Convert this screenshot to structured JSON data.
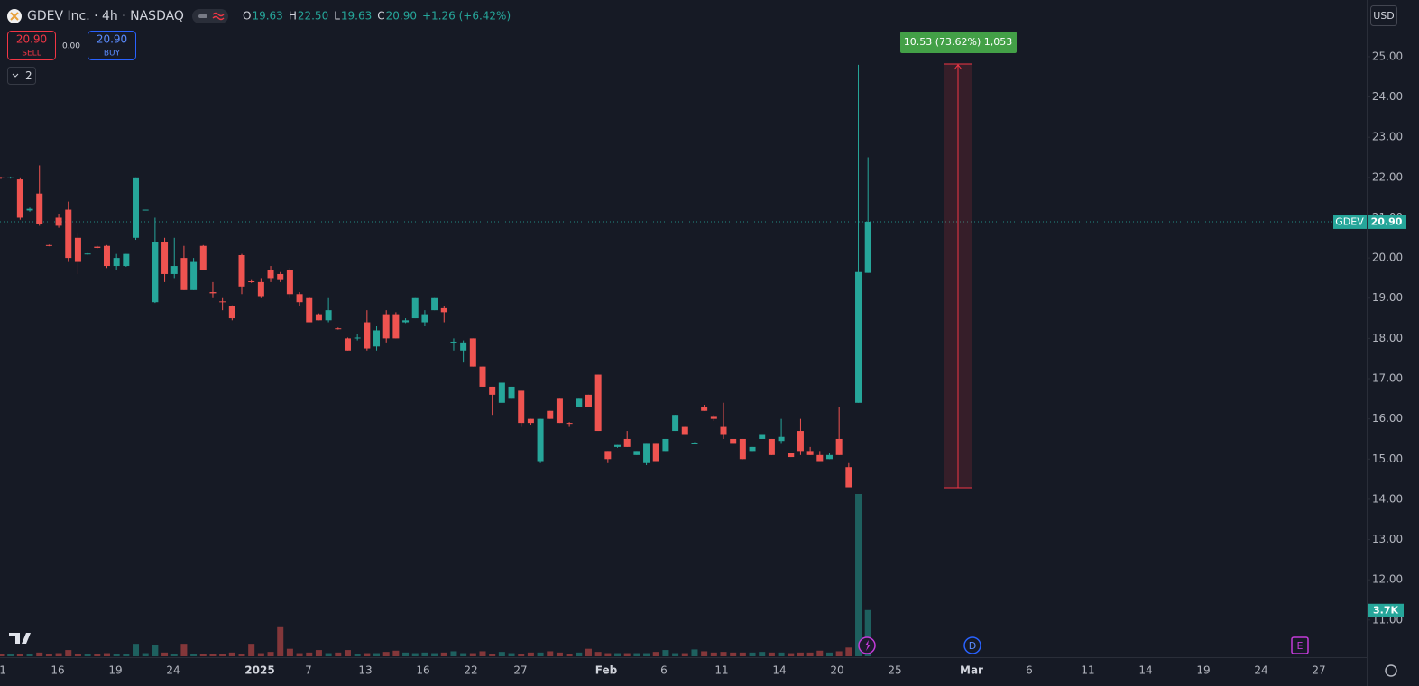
{
  "header": {
    "title": "GDEV Inc. · 4h · NASDAQ",
    "ohlc": [
      {
        "key": "O",
        "value": "19.63"
      },
      {
        "key": "H",
        "value": "22.50"
      },
      {
        "key": "L",
        "value": "19.63"
      },
      {
        "key": "C",
        "value": "20.90"
      }
    ],
    "change": "+1.26 (+6.42%)",
    "sell": {
      "price": "20.90",
      "label": "SELL"
    },
    "spread": "0.00",
    "buy": {
      "price": "20.90",
      "label": "BUY"
    },
    "indicators": "2",
    "currency": "USD"
  },
  "chart_data": {
    "type": "candlestick",
    "symbol": "GDEV",
    "up_color": "#26a69a",
    "down_color": "#ef5350",
    "candles": [
      {
        "o": 22.0,
        "h": 22.02,
        "l": 21.96,
        "c": 21.98
      },
      {
        "o": 21.98,
        "h": 22.02,
        "l": 21.97,
        "c": 22.0
      },
      {
        "o": 21.95,
        "h": 22.0,
        "l": 20.95,
        "c": 21.0
      },
      {
        "o": 21.18,
        "h": 21.25,
        "l": 21.15,
        "c": 21.22
      },
      {
        "o": 21.6,
        "h": 22.3,
        "l": 20.8,
        "c": 20.85
      },
      {
        "o": 20.32,
        "h": 20.33,
        "l": 20.29,
        "c": 20.3
      },
      {
        "o": 21.0,
        "h": 21.1,
        "l": 20.75,
        "c": 20.8
      },
      {
        "o": 21.2,
        "h": 21.4,
        "l": 19.9,
        "c": 20.0
      },
      {
        "o": 20.5,
        "h": 20.6,
        "l": 19.6,
        "c": 19.9
      },
      {
        "o": 20.1,
        "h": 20.12,
        "l": 20.08,
        "c": 20.11
      },
      {
        "o": 20.28,
        "h": 20.3,
        "l": 20.24,
        "c": 20.25
      },
      {
        "o": 20.3,
        "h": 20.32,
        "l": 19.75,
        "c": 19.8
      },
      {
        "o": 19.8,
        "h": 20.1,
        "l": 19.7,
        "c": 20.0
      },
      {
        "o": 19.8,
        "h": 20.1,
        "l": 19.78,
        "c": 20.1
      },
      {
        "o": 20.5,
        "h": 22.0,
        "l": 20.45,
        "c": 22.0
      },
      {
        "o": 21.19,
        "h": 21.2,
        "l": 21.18,
        "c": 21.2
      },
      {
        "o": 18.9,
        "h": 21.0,
        "l": 18.88,
        "c": 20.4
      },
      {
        "o": 20.4,
        "h": 20.5,
        "l": 19.4,
        "c": 19.6
      },
      {
        "o": 19.6,
        "h": 20.5,
        "l": 19.5,
        "c": 19.8
      },
      {
        "o": 20.0,
        "h": 20.3,
        "l": 19.2,
        "c": 19.2
      },
      {
        "o": 19.2,
        "h": 20.0,
        "l": 19.2,
        "c": 19.9
      },
      {
        "o": 20.3,
        "h": 20.32,
        "l": 19.7,
        "c": 19.7
      },
      {
        "o": 19.15,
        "h": 19.4,
        "l": 19.0,
        "c": 19.12
      },
      {
        "o": 18.92,
        "h": 19.0,
        "l": 18.7,
        "c": 18.9
      },
      {
        "o": 18.8,
        "h": 18.82,
        "l": 18.45,
        "c": 18.5
      },
      {
        "o": 20.07,
        "h": 20.1,
        "l": 19.1,
        "c": 19.29
      },
      {
        "o": 19.42,
        "h": 19.45,
        "l": 19.38,
        "c": 19.4
      },
      {
        "o": 19.4,
        "h": 19.5,
        "l": 19.0,
        "c": 19.05
      },
      {
        "o": 19.7,
        "h": 19.8,
        "l": 19.4,
        "c": 19.5
      },
      {
        "o": 19.6,
        "h": 19.65,
        "l": 19.4,
        "c": 19.45
      },
      {
        "o": 19.7,
        "h": 19.75,
        "l": 19.0,
        "c": 19.1
      },
      {
        "o": 19.1,
        "h": 19.15,
        "l": 18.8,
        "c": 18.9
      },
      {
        "o": 19.0,
        "h": 19.02,
        "l": 18.4,
        "c": 18.4
      },
      {
        "o": 18.6,
        "h": 18.62,
        "l": 18.45,
        "c": 18.45
      },
      {
        "o": 18.45,
        "h": 19.0,
        "l": 18.4,
        "c": 18.7
      },
      {
        "o": 18.25,
        "h": 18.27,
        "l": 18.22,
        "c": 18.23
      },
      {
        "o": 18.0,
        "h": 18.02,
        "l": 17.7,
        "c": 17.7
      },
      {
        "o": 18.0,
        "h": 18.1,
        "l": 17.95,
        "c": 18.02
      },
      {
        "o": 18.4,
        "h": 18.7,
        "l": 17.7,
        "c": 17.75
      },
      {
        "o": 17.8,
        "h": 18.3,
        "l": 17.7,
        "c": 18.2
      },
      {
        "o": 18.6,
        "h": 18.7,
        "l": 17.9,
        "c": 18.0
      },
      {
        "o": 18.6,
        "h": 18.65,
        "l": 18.0,
        "c": 18.0
      },
      {
        "o": 18.4,
        "h": 18.5,
        "l": 18.38,
        "c": 18.45
      },
      {
        "o": 18.5,
        "h": 19.0,
        "l": 18.5,
        "c": 19.0
      },
      {
        "o": 18.4,
        "h": 18.7,
        "l": 18.3,
        "c": 18.6
      },
      {
        "o": 18.7,
        "h": 19.0,
        "l": 18.7,
        "c": 19.0
      },
      {
        "o": 18.75,
        "h": 18.8,
        "l": 18.4,
        "c": 18.65
      },
      {
        "o": 17.9,
        "h": 18.0,
        "l": 17.7,
        "c": 17.92
      },
      {
        "o": 17.7,
        "h": 17.95,
        "l": 17.4,
        "c": 17.9
      },
      {
        "o": 18.0,
        "h": 18.0,
        "l": 17.3,
        "c": 17.3
      },
      {
        "o": 17.3,
        "h": 17.3,
        "l": 16.8,
        "c": 16.8
      },
      {
        "o": 16.8,
        "h": 16.8,
        "l": 16.1,
        "c": 16.6
      },
      {
        "o": 16.4,
        "h": 16.9,
        "l": 16.4,
        "c": 16.9
      },
      {
        "o": 16.5,
        "h": 16.8,
        "l": 16.5,
        "c": 16.8
      },
      {
        "o": 16.7,
        "h": 16.7,
        "l": 15.8,
        "c": 15.9
      },
      {
        "o": 16.0,
        "h": 16.0,
        "l": 15.85,
        "c": 15.9
      },
      {
        "o": 14.95,
        "h": 16.0,
        "l": 14.9,
        "c": 16.0
      },
      {
        "o": 16.2,
        "h": 16.2,
        "l": 16.0,
        "c": 16.0
      },
      {
        "o": 16.5,
        "h": 16.5,
        "l": 15.9,
        "c": 15.9
      },
      {
        "o": 15.9,
        "h": 15.92,
        "l": 15.8,
        "c": 15.88
      },
      {
        "o": 16.3,
        "h": 16.5,
        "l": 16.3,
        "c": 16.5
      },
      {
        "o": 16.6,
        "h": 16.6,
        "l": 16.3,
        "c": 16.3
      },
      {
        "o": 17.1,
        "h": 17.1,
        "l": 15.7,
        "c": 15.7
      },
      {
        "o": 15.2,
        "h": 15.2,
        "l": 14.9,
        "c": 15.0
      },
      {
        "o": 15.3,
        "h": 15.35,
        "l": 15.28,
        "c": 15.35
      },
      {
        "o": 15.5,
        "h": 15.7,
        "l": 15.3,
        "c": 15.3
      },
      {
        "o": 15.1,
        "h": 15.2,
        "l": 15.1,
        "c": 15.2
      },
      {
        "o": 14.9,
        "h": 15.4,
        "l": 14.85,
        "c": 15.4
      },
      {
        "o": 15.4,
        "h": 15.4,
        "l": 14.95,
        "c": 14.95
      },
      {
        "o": 15.2,
        "h": 15.5,
        "l": 15.2,
        "c": 15.5
      },
      {
        "o": 15.7,
        "h": 16.1,
        "l": 15.7,
        "c": 16.1
      },
      {
        "o": 15.8,
        "h": 15.8,
        "l": 15.6,
        "c": 15.6
      },
      {
        "o": 15.4,
        "h": 15.42,
        "l": 15.38,
        "c": 15.41
      },
      {
        "o": 16.3,
        "h": 16.35,
        "l": 16.2,
        "c": 16.2
      },
      {
        "o": 16.05,
        "h": 16.1,
        "l": 15.95,
        "c": 16.0
      },
      {
        "o": 15.8,
        "h": 16.4,
        "l": 15.5,
        "c": 15.6
      },
      {
        "o": 15.5,
        "h": 15.5,
        "l": 15.4,
        "c": 15.4
      },
      {
        "o": 15.5,
        "h": 15.5,
        "l": 15.0,
        "c": 15.0
      },
      {
        "o": 15.2,
        "h": 15.3,
        "l": 15.2,
        "c": 15.3
      },
      {
        "o": 15.5,
        "h": 15.6,
        "l": 15.5,
        "c": 15.6
      },
      {
        "o": 15.5,
        "h": 15.5,
        "l": 15.1,
        "c": 15.1
      },
      {
        "o": 15.45,
        "h": 16.0,
        "l": 15.4,
        "c": 15.55
      },
      {
        "o": 15.15,
        "h": 15.15,
        "l": 15.05,
        "c": 15.05
      },
      {
        "o": 15.7,
        "h": 16.0,
        "l": 15.1,
        "c": 15.2
      },
      {
        "o": 15.2,
        "h": 15.3,
        "l": 15.1,
        "c": 15.1
      },
      {
        "o": 15.1,
        "h": 15.2,
        "l": 14.95,
        "c": 14.95
      },
      {
        "o": 15.0,
        "h": 15.15,
        "l": 15.0,
        "c": 15.1
      },
      {
        "o": 15.5,
        "h": 16.3,
        "l": 15.1,
        "c": 15.1
      },
      {
        "o": 14.8,
        "h": 14.9,
        "l": 14.3,
        "c": 14.3
      },
      {
        "o": 16.4,
        "h": 24.8,
        "l": 16.4,
        "c": 19.65
      },
      {
        "o": 19.63,
        "h": 22.5,
        "l": 19.63,
        "c": 20.9
      }
    ],
    "volumes": [
      150,
      150,
      200,
      150,
      300,
      150,
      250,
      500,
      200,
      150,
      150,
      250,
      200,
      150,
      1000,
      250,
      900,
      300,
      200,
      1000,
      200,
      200,
      150,
      200,
      300,
      200,
      1000,
      250,
      350,
      2400,
      600,
      250,
      300,
      500,
      250,
      300,
      500,
      200,
      250,
      250,
      350,
      450,
      300,
      250,
      300,
      250,
      300,
      400,
      250,
      250,
      400,
      200,
      350,
      250,
      200,
      300,
      300,
      400,
      300,
      200,
      300,
      600,
      350,
      250,
      250,
      250,
      250,
      250,
      350,
      500,
      250,
      250,
      550,
      400,
      300,
      350,
      300,
      300,
      300,
      350,
      300,
      300,
      250,
      300,
      300,
      450,
      300,
      400,
      700,
      13000,
      3700
    ],
    "volume_label": {
      "value": 3700,
      "label": "3.7K"
    },
    "ylim": [
      10.1,
      26.41
    ],
    "yticks": [
      {
        "value": 11,
        "label": "11.00"
      },
      {
        "value": 12,
        "label": "12.00"
      },
      {
        "value": 13,
        "label": "13.00"
      },
      {
        "value": 14,
        "label": "14.00"
      },
      {
        "value": 15,
        "label": "15.00"
      },
      {
        "value": 16,
        "label": "16.00"
      },
      {
        "value": 17,
        "label": "17.00"
      },
      {
        "value": 18,
        "label": "18.00"
      },
      {
        "value": 19,
        "label": "19.00"
      },
      {
        "value": 20,
        "label": "20.00"
      },
      {
        "value": 21,
        "label": "21.00"
      },
      {
        "value": 22,
        "label": "22.00"
      },
      {
        "value": 23,
        "label": "23.00"
      },
      {
        "value": 24,
        "label": "24.00"
      },
      {
        "value": 25,
        "label": "25.00"
      }
    ],
    "xtick_labels": [
      "1",
      "16",
      "19",
      "24",
      "2025",
      "7",
      "13",
      "16",
      "22",
      "27",
      "Feb",
      "6",
      "11",
      "14",
      "20",
      "25",
      "Mar",
      "6",
      "11",
      "14",
      "19",
      "24",
      "27"
    ],
    "last_price": {
      "value": 20.9,
      "label": "20.90"
    },
    "measure": {
      "label": "10.53 (73.62%) 1,053",
      "from": 14.29,
      "to": 24.82
    },
    "events": [
      "D",
      "E"
    ]
  }
}
